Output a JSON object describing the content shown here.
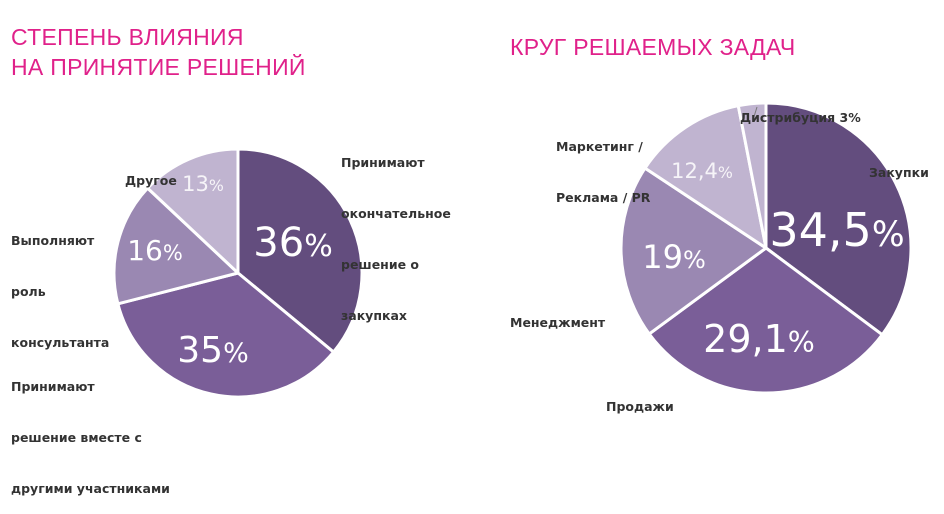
{
  "chart_data": [
    {
      "type": "pie",
      "title": [
        "СТЕПЕНЬ ВЛИЯНИЯ",
        "НА ПРИНЯТИЕ РЕШЕНИЙ"
      ],
      "start": "top, clockwise",
      "slices": [
        {
          "name": "Принимают окончательное решение о закупках",
          "name_lines": [
            "Принимают",
            "окончательное",
            "решение о",
            "закупках"
          ],
          "value": 36,
          "label": "36%",
          "color": "#634d7e"
        },
        {
          "name": "Принимают решение вместе с другими участниками",
          "name_lines": [
            "Принимают",
            "решение вместе с",
            "другими участниками"
          ],
          "value": 35,
          "label": "35%",
          "color": "#7a5e98"
        },
        {
          "name": "Выполняют роль консультанта",
          "name_lines": [
            "Выполняют",
            "роль",
            "консультанта"
          ],
          "value": 16,
          "label": "16%",
          "color": "#9a88b2"
        },
        {
          "name": "Другое",
          "name_lines": [
            "Другое"
          ],
          "value": 13,
          "label": "13%",
          "color": "#c0b4d0"
        }
      ]
    },
    {
      "type": "pie",
      "title": [
        "КРУГ РЕШАЕМЫХ ЗАДАЧ"
      ],
      "start": "top, clockwise",
      "slices": [
        {
          "name": "Закупки",
          "name_lines": [
            "Закупки"
          ],
          "value": 34.5,
          "label": "34,5%",
          "color": "#634d7e"
        },
        {
          "name": "Продажи",
          "name_lines": [
            "Продажи"
          ],
          "value": 29.1,
          "label": "29,1%",
          "color": "#7a5e98"
        },
        {
          "name": "Менеджмент",
          "name_lines": [
            "Менеджмент"
          ],
          "value": 19,
          "label": "19%",
          "color": "#9a88b2"
        },
        {
          "name": "Маркетинг / Реклама / PR",
          "name_lines": [
            "Маркетинг /",
            "Реклама / PR"
          ],
          "value": 12.4,
          "label": "12,4%",
          "color": "#c0b4d0"
        },
        {
          "name": "Дистрибуция",
          "name_lines": [
            "Дистрибуция 3%"
          ],
          "value": 3,
          "label": "",
          "color": "#c0b4d0"
        }
      ]
    }
  ],
  "colors": {
    "title": "#e0218a",
    "text": "#333333"
  }
}
